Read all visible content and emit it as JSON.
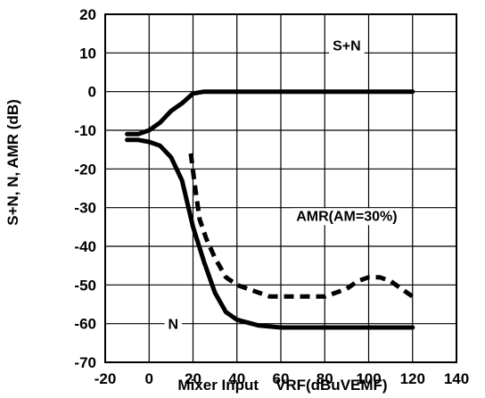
{
  "chart_data": {
    "type": "line",
    "title": "",
    "xlabel": "Mixer Input    VRF(dBuVEMF)",
    "ylabel": "S+N, N, AMR (dB)",
    "xlim": [
      -20,
      140
    ],
    "ylim": [
      -70,
      20
    ],
    "x_ticks": [
      "-20",
      "0",
      "20",
      "40",
      "60",
      "80",
      "100",
      "120",
      "140"
    ],
    "y_ticks": [
      "20",
      "10",
      "0",
      "-10",
      "-20",
      "-30",
      "-40",
      "-50",
      "-60",
      "-70"
    ],
    "grid": true,
    "legend": "none",
    "series": [
      {
        "name": "S+N",
        "style": "solid",
        "x": [
          -10,
          -5,
          0,
          5,
          10,
          15,
          20,
          25,
          30,
          40,
          60,
          80,
          100,
          120
        ],
        "y": [
          -11,
          -11,
          -10,
          -8,
          -5,
          -3,
          -0.5,
          0,
          0,
          0,
          0,
          0,
          0,
          0
        ]
      },
      {
        "name": "N",
        "style": "solid",
        "x": [
          -10,
          -5,
          0,
          5,
          10,
          15,
          20,
          25,
          30,
          35,
          40,
          50,
          60,
          80,
          100,
          120
        ],
        "y": [
          -12.5,
          -12.5,
          -13,
          -14,
          -17,
          -23,
          -35,
          -44,
          -52,
          -57,
          -59,
          -60.5,
          -61,
          -61,
          -61,
          -61
        ]
      },
      {
        "name": "AMR(AM=30%)",
        "style": "dashed",
        "x": [
          19,
          21,
          23,
          26,
          30,
          35,
          40,
          45,
          50,
          55,
          60,
          65,
          70,
          75,
          80,
          85,
          90,
          95,
          100,
          105,
          110,
          115,
          120
        ],
        "y": [
          -16,
          -25,
          -33,
          -38,
          -43,
          -48,
          -50,
          -51,
          -52,
          -53,
          -53,
          -53,
          -53,
          -53,
          -53,
          -52,
          -51,
          -49,
          -48,
          -48,
          -49,
          -51,
          -53
        ]
      }
    ],
    "annotations": [
      {
        "text": "S+N",
        "x": 90,
        "y": 12
      },
      {
        "text": "AMR(AM=30%)",
        "x": 90,
        "y": -32
      },
      {
        "text": "N",
        "x": 11,
        "y": -60
      }
    ]
  }
}
